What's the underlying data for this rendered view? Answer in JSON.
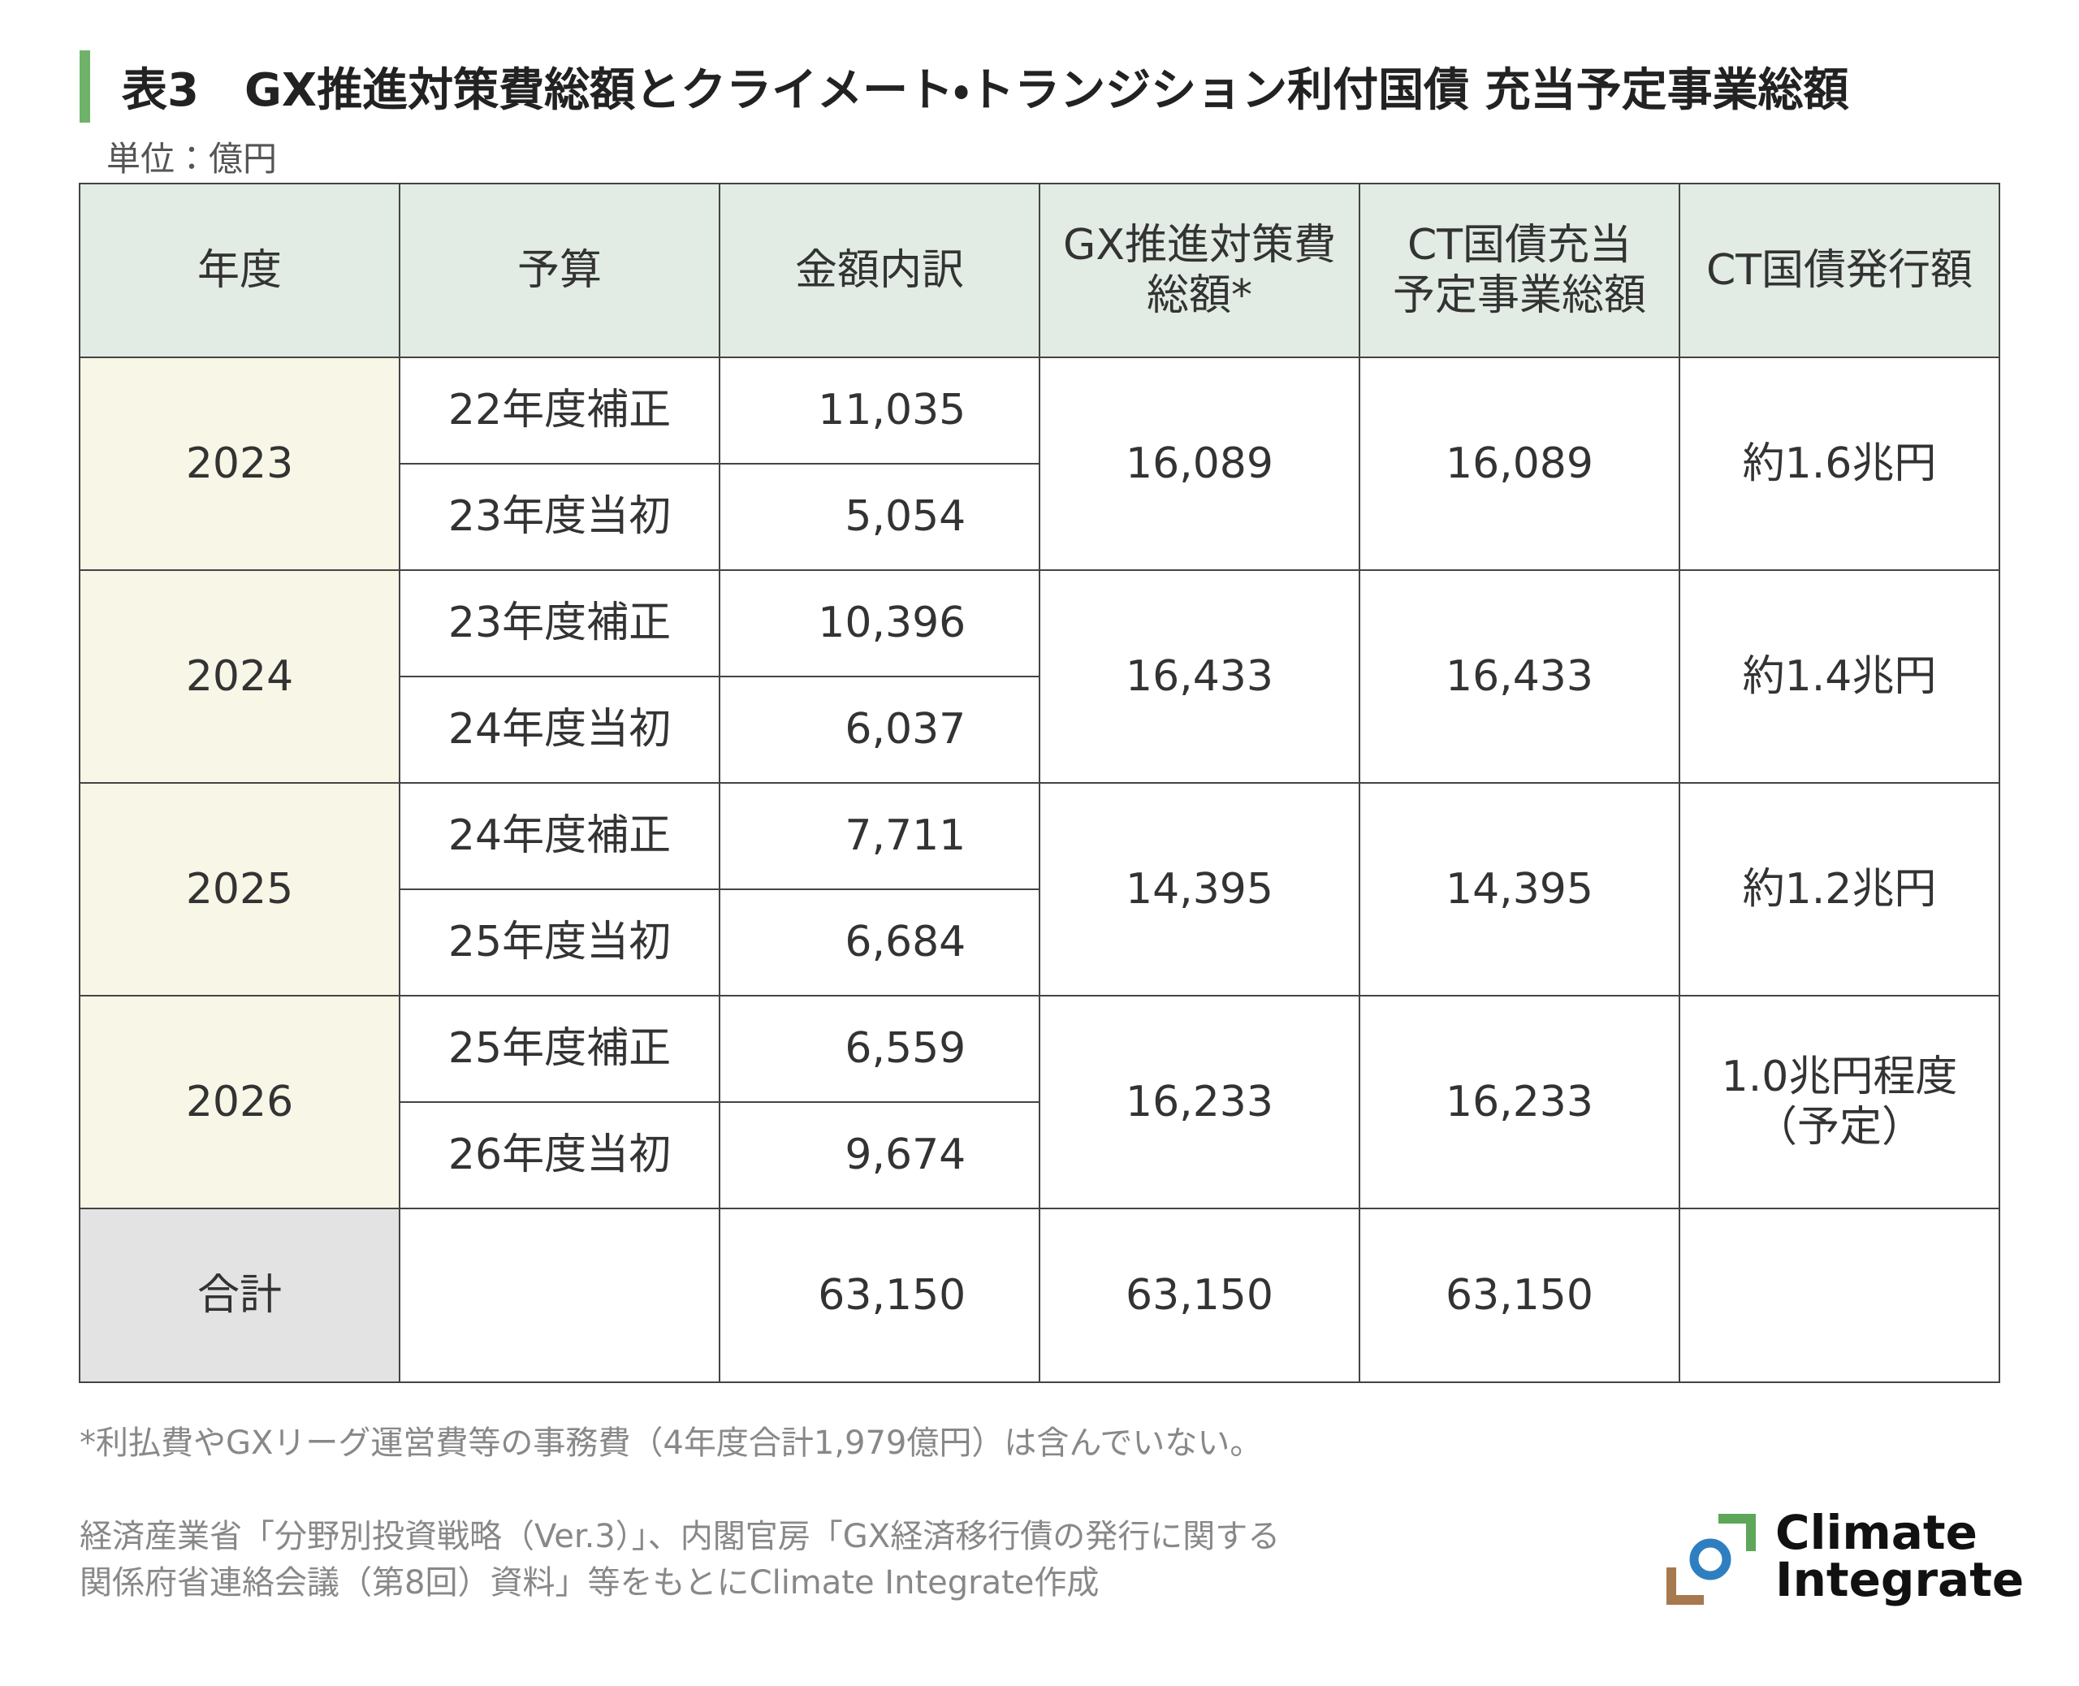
{
  "header": {
    "title": "表3　GX推進対策費総額とクライメート・トランジション利付国債 充当予定事業総額",
    "unit": "単位：億円"
  },
  "table": {
    "columns": [
      [
        "年度"
      ],
      [
        "予算"
      ],
      [
        "金額内訳"
      ],
      [
        "GX推進対策費",
        "総額*"
      ],
      [
        "CT国債充当",
        "予定事業総額"
      ],
      [
        "CT国債発行額"
      ]
    ],
    "rows": [
      {
        "year": "2023",
        "items": [
          {
            "budget": "22年度補正",
            "amount": "11,035"
          },
          {
            "budget": "23年度当初",
            "amount": "5,054"
          }
        ],
        "gx_total": "16,089",
        "ct_total": "16,089",
        "ct_issue": [
          "約1.6兆円"
        ]
      },
      {
        "year": "2024",
        "items": [
          {
            "budget": "23年度補正",
            "amount": "10,396"
          },
          {
            "budget": "24年度当初",
            "amount": "6,037"
          }
        ],
        "gx_total": "16,433",
        "ct_total": "16,433",
        "ct_issue": [
          "約1.4兆円"
        ]
      },
      {
        "year": "2025",
        "items": [
          {
            "budget": "24年度補正",
            "amount": "7,711"
          },
          {
            "budget": "25年度当初",
            "amount": "6,684"
          }
        ],
        "gx_total": "14,395",
        "ct_total": "14,395",
        "ct_issue": [
          "約1.2兆円"
        ]
      },
      {
        "year": "2026",
        "items": [
          {
            "budget": "25年度補正",
            "amount": "6,559"
          },
          {
            "budget": "26年度当初",
            "amount": "9,674"
          }
        ],
        "gx_total": "16,233",
        "ct_total": "16,233",
        "ct_issue": [
          "1.0兆円程度",
          "（予定）"
        ]
      }
    ],
    "total": {
      "label": "合計",
      "amount": "63,150",
      "gx_total": "63,150",
      "ct_total": "63,150"
    }
  },
  "footnote": "*利払費やGXリーグ運営費等の事務費（4年度合計1,979億円）は含んでいない。",
  "source": [
    "経済産業省「分野別投資戦略（Ver.3）」、内閣官房「GX経済移行債の発行に関する",
    "関係府省連絡会議（第8回）資料」等をもとにClimate Integrate作成"
  ],
  "logo": [
    "Climate",
    "Integrate"
  ]
}
